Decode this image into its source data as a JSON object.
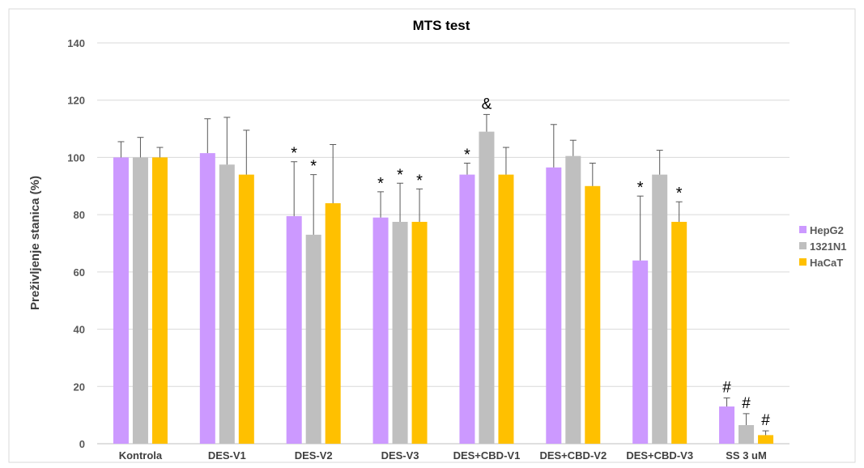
{
  "chart_data": {
    "type": "bar",
    "title": "MTS test",
    "xlabel": "",
    "ylabel": "Preživljenje stanica (%)",
    "ylim": [
      0,
      140
    ],
    "yticks": [
      0,
      20,
      40,
      60,
      80,
      100,
      120,
      140
    ],
    "grid": true,
    "legend_position": "right",
    "categories": [
      "Kontrola",
      "DES-V1",
      "DES-V2",
      "DES-V3",
      "DES+CBD-V1",
      "DES+CBD-V2",
      "DES+CBD-V3",
      "SS 3 uM"
    ],
    "series": [
      {
        "name": "HepG2",
        "color": "#cc99ff",
        "values": [
          100,
          101.5,
          79.5,
          79,
          94,
          96.5,
          64,
          13
        ],
        "errors": [
          5.5,
          12,
          19,
          9,
          4,
          15,
          22.5,
          3
        ],
        "annotations": [
          "",
          "",
          "*",
          "*",
          "*",
          "",
          "*",
          "#"
        ]
      },
      {
        "name": "1321N1",
        "color": "#bfbfbf",
        "values": [
          100,
          97.5,
          73,
          77.5,
          109,
          100.5,
          94,
          6.5
        ],
        "errors": [
          7,
          16.5,
          21,
          13.5,
          6,
          5.5,
          8.5,
          4
        ],
        "annotations": [
          "",
          "",
          "*",
          "*",
          "&",
          "",
          "",
          "#"
        ]
      },
      {
        "name": "HaCaT",
        "color": "#ffc000",
        "values": [
          100,
          94,
          84,
          77.5,
          94,
          90,
          77.5,
          3
        ],
        "errors": [
          3.5,
          15.5,
          20.5,
          11.5,
          9.5,
          8,
          7,
          1.5
        ],
        "annotations": [
          "",
          "",
          "",
          "*",
          "",
          "",
          "*",
          "#"
        ]
      }
    ]
  }
}
